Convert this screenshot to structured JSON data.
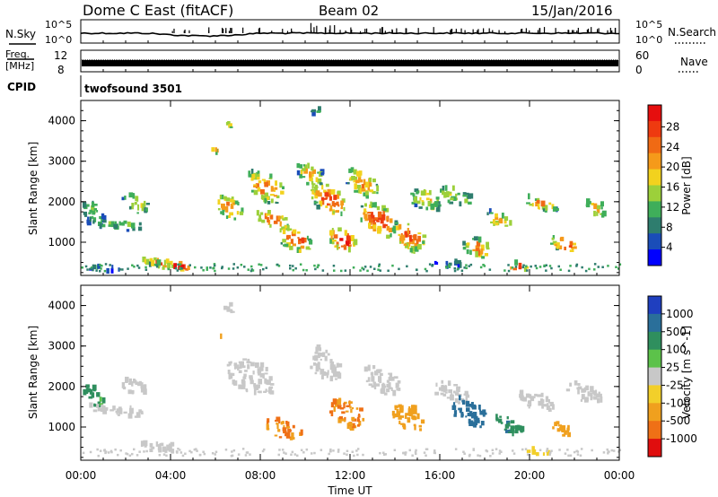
{
  "header": {
    "station": "Dome C East (fitACF)",
    "beam": "Beam 02",
    "date": "15/Jan/2016"
  },
  "top_panels": {
    "nsky_label": "N.Sky",
    "nsky_ticks": [
      "10^5",
      "10^0"
    ],
    "nsearch_label": "N.Search",
    "nsearch_ticks": [
      "10^5",
      "10^0"
    ],
    "freq_label_1": "Freq.",
    "freq_label_2": "[MHz]",
    "freq_ticks": [
      "12",
      "8"
    ],
    "nave_label": "Nave",
    "nave_ticks": [
      "60",
      "0"
    ],
    "cpid_label": "CPID",
    "cpid_value": "twofsound 3501"
  },
  "chart_data": [
    {
      "type": "heatmap",
      "name": "power",
      "ylabel": "Slant Range [km]",
      "yticks": [
        "4000",
        "3000",
        "2000",
        "1000"
      ],
      "ylim": [
        180,
        4500
      ],
      "colorbar_label": "Power [dB]",
      "colorbar_ticks": [
        "28",
        "24",
        "20",
        "16",
        "12",
        "8",
        "4"
      ],
      "colors": [
        "#0000ff",
        "#1a4db8",
        "#2e7d6e",
        "#3fae5a",
        "#9cd03a",
        "#f2d21e",
        "#f59a1a",
        "#f06a14",
        "#ee3a10",
        "#e60e0e"
      ],
      "blobs": [
        {
          "t": 0.5,
          "r": 1700,
          "dt": 0.9,
          "dr": 500,
          "v": 12
        },
        {
          "t": 2.4,
          "r": 1900,
          "dt": 1.2,
          "dr": 400,
          "v": 16
        },
        {
          "t": 1.5,
          "r": 1400,
          "dt": 2.5,
          "dr": 250,
          "v": 12
        },
        {
          "t": 1.0,
          "r": 300,
          "dt": 1.5,
          "dr": 150,
          "v": 8
        },
        {
          "t": 3.4,
          "r": 450,
          "dt": 1.6,
          "dr": 200,
          "v": 24
        },
        {
          "t": 4.2,
          "r": 350,
          "dt": 1.8,
          "dr": 150,
          "v": 28
        },
        {
          "t": 6.0,
          "r": 3200,
          "dt": 0.6,
          "dr": 120,
          "v": 20
        },
        {
          "t": 6.5,
          "r": 3850,
          "dt": 0.4,
          "dr": 180,
          "v": 18
        },
        {
          "t": 6.6,
          "r": 1800,
          "dt": 1.2,
          "dr": 500,
          "v": 22
        },
        {
          "t": 8.2,
          "r": 2300,
          "dt": 1.6,
          "dr": 700,
          "v": 22
        },
        {
          "t": 8.5,
          "r": 1500,
          "dt": 1.4,
          "dr": 400,
          "v": 24
        },
        {
          "t": 9.5,
          "r": 1000,
          "dt": 1.4,
          "dr": 500,
          "v": 26
        },
        {
          "t": 10.2,
          "r": 2600,
          "dt": 1.2,
          "dr": 500,
          "v": 18
        },
        {
          "t": 11.0,
          "r": 2000,
          "dt": 1.6,
          "dr": 700,
          "v": 24
        },
        {
          "t": 11.6,
          "r": 1000,
          "dt": 1.2,
          "dr": 500,
          "v": 28
        },
        {
          "t": 12.5,
          "r": 2400,
          "dt": 1.4,
          "dr": 600,
          "v": 20
        },
        {
          "t": 13.2,
          "r": 1500,
          "dt": 1.6,
          "dr": 700,
          "v": 26
        },
        {
          "t": 14.6,
          "r": 1100,
          "dt": 1.4,
          "dr": 700,
          "v": 24
        },
        {
          "t": 15.3,
          "r": 2000,
          "dt": 1.4,
          "dr": 500,
          "v": 18
        },
        {
          "t": 16.6,
          "r": 2100,
          "dt": 1.4,
          "dr": 400,
          "v": 16
        },
        {
          "t": 17.6,
          "r": 800,
          "dt": 1.2,
          "dr": 450,
          "v": 22
        },
        {
          "t": 18.6,
          "r": 1500,
          "dt": 1.2,
          "dr": 350,
          "v": 18
        },
        {
          "t": 19.4,
          "r": 350,
          "dt": 1.0,
          "dr": 150,
          "v": 28
        },
        {
          "t": 20.5,
          "r": 1900,
          "dt": 1.5,
          "dr": 300,
          "v": 20
        },
        {
          "t": 21.5,
          "r": 900,
          "dt": 1.2,
          "dr": 350,
          "v": 26
        },
        {
          "t": 22.9,
          "r": 1800,
          "dt": 0.8,
          "dr": 400,
          "v": 18
        },
        {
          "t": 16.5,
          "r": 400,
          "dt": 1.5,
          "dr": 150,
          "v": 8
        },
        {
          "t": 10.4,
          "r": 4200,
          "dt": 0.5,
          "dr": 250,
          "v": 10
        }
      ]
    },
    {
      "type": "heatmap",
      "name": "velocity",
      "ylabel": "Slant Range [km]",
      "yticks": [
        "4000",
        "3000",
        "2000",
        "1000"
      ],
      "ylim": [
        180,
        4500
      ],
      "xlabel": "Time UT",
      "xticks": [
        "00:00",
        "04:00",
        "08:00",
        "12:00",
        "16:00",
        "20:00",
        "00:00"
      ],
      "xlim": [
        0,
        24
      ],
      "colorbar_label": "Velocity [m s^-1]",
      "colorbar_ticks": [
        "1000",
        "500",
        "100",
        "25",
        "-25",
        "-100",
        "-500",
        "-1000"
      ],
      "colors": [
        "#1f3fbf",
        "#2a6f9a",
        "#2f8f5e",
        "#5cc24a",
        "#c8c8c8",
        "#f2cf2a",
        "#f0a01e",
        "#ef7016",
        "#e00e0e"
      ],
      "blobs": [
        {
          "t": 0.5,
          "r": 1700,
          "dt": 0.9,
          "dr": 450,
          "v": 60
        },
        {
          "t": 2.4,
          "r": 1900,
          "dt": 1.2,
          "dr": 400,
          "v": 0
        },
        {
          "t": 1.5,
          "r": 1350,
          "dt": 2.5,
          "dr": 250,
          "v": 0
        },
        {
          "t": 3.6,
          "r": 450,
          "dt": 2.0,
          "dr": 220,
          "v": 0
        },
        {
          "t": 6.1,
          "r": 3200,
          "dt": 0.5,
          "dr": 120,
          "v": -300
        },
        {
          "t": 7.5,
          "r": 2200,
          "dt": 2.0,
          "dr": 800,
          "v": 0
        },
        {
          "t": 9.0,
          "r": 900,
          "dt": 1.6,
          "dr": 400,
          "v": -300
        },
        {
          "t": 10.8,
          "r": 2500,
          "dt": 1.4,
          "dr": 700,
          "v": 0
        },
        {
          "t": 11.8,
          "r": 1300,
          "dt": 1.5,
          "dr": 700,
          "v": -300
        },
        {
          "t": 13.4,
          "r": 2100,
          "dt": 1.6,
          "dr": 600,
          "v": 0
        },
        {
          "t": 14.5,
          "r": 1200,
          "dt": 1.4,
          "dr": 600,
          "v": -200
        },
        {
          "t": 16.5,
          "r": 1800,
          "dt": 1.6,
          "dr": 500,
          "v": 0
        },
        {
          "t": 17.3,
          "r": 1300,
          "dt": 1.6,
          "dr": 600,
          "v": 200
        },
        {
          "t": 19.0,
          "r": 1000,
          "dt": 1.2,
          "dr": 400,
          "v": 80
        },
        {
          "t": 20.2,
          "r": 1600,
          "dt": 1.8,
          "dr": 400,
          "v": 0
        },
        {
          "t": 21.4,
          "r": 900,
          "dt": 1.2,
          "dr": 300,
          "v": -200
        },
        {
          "t": 22.4,
          "r": 1800,
          "dt": 1.6,
          "dr": 400,
          "v": 0
        },
        {
          "t": 20.3,
          "r": 350,
          "dt": 1.0,
          "dr": 150,
          "v": -60
        },
        {
          "t": 6.5,
          "r": 3900,
          "dt": 0.5,
          "dr": 200,
          "v": 0
        }
      ]
    }
  ]
}
